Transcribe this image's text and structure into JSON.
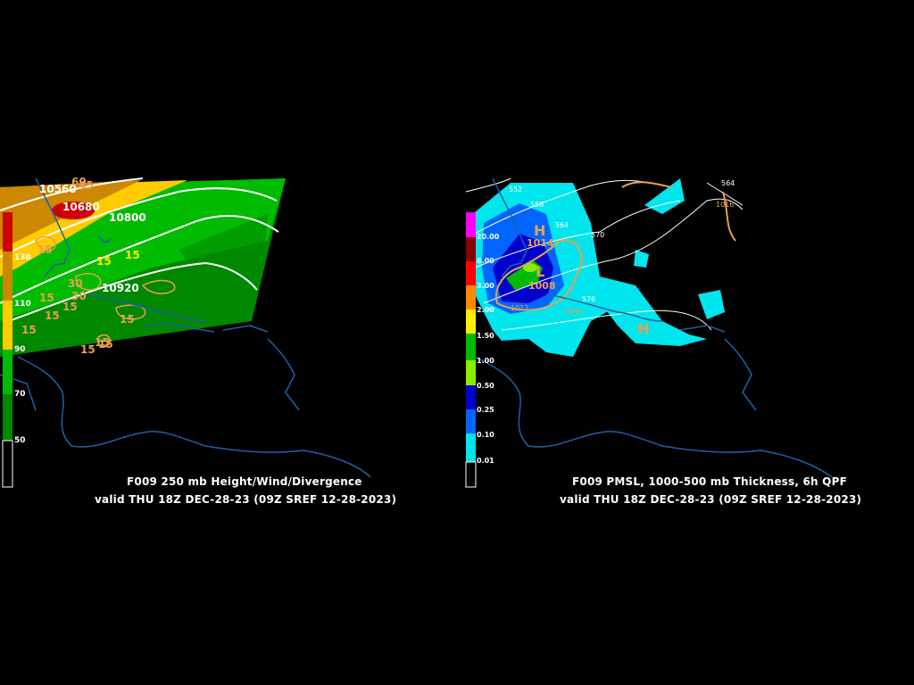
{
  "left_panel": {
    "title": "F009 250 mb Height/Wind/Divergence",
    "valid": "valid THU 18Z DEC-28-23 (09Z SREF 12-28-2023)",
    "legend_labels": [
      "130",
      "110",
      "90",
      "70",
      "50"
    ],
    "legend_colors": [
      "#cc0000",
      "#cc8800",
      "#ffcc00",
      "#00bb00",
      "#008800",
      "#000000"
    ],
    "height_labels": [
      "10560",
      "10680",
      "10800",
      "10920"
    ],
    "divergence_labels": [
      "60",
      "45",
      "15",
      "15",
      "15",
      "15",
      "30",
      "30",
      "15",
      "15",
      "15",
      "15",
      "15",
      "15",
      "15"
    ]
  },
  "right_panel": {
    "title": "F009 PMSL, 1000-500 mb Thickness, 6h QPF",
    "valid": "valid THU 18Z DEC-28-23 (09Z SREF 12-28-2023)",
    "legend_labels": [
      "20.00",
      "6.00",
      "3.00",
      "2.00",
      "1.50",
      "1.00",
      "0.50",
      "0.25",
      "0.10",
      "0.01"
    ],
    "legend_colors": [
      "#ff00ff",
      "#880000",
      "#ff0000",
      "#ff8800",
      "#ffee00",
      "#00bb00",
      "#88ee00",
      "#0000cc",
      "#0066ff",
      "#00e5ee",
      "#000000"
    ],
    "thickness_labels": [
      "552",
      "558",
      "564",
      "570",
      "576",
      "564"
    ],
    "pressure_labels": [
      "1016",
      "1012",
      "1008"
    ],
    "high_symbol": "H",
    "high_value": "1014",
    "low_symbol": "L",
    "low_value": "1008",
    "high2_symbol": "H"
  },
  "colors": {
    "background": "#000000",
    "coastline": "#1f5fa8",
    "height_contour": "#ffffff",
    "divergence_contour": "#e8a050",
    "isobar": "#e8a050",
    "thickness_contour": "#ffffff"
  }
}
